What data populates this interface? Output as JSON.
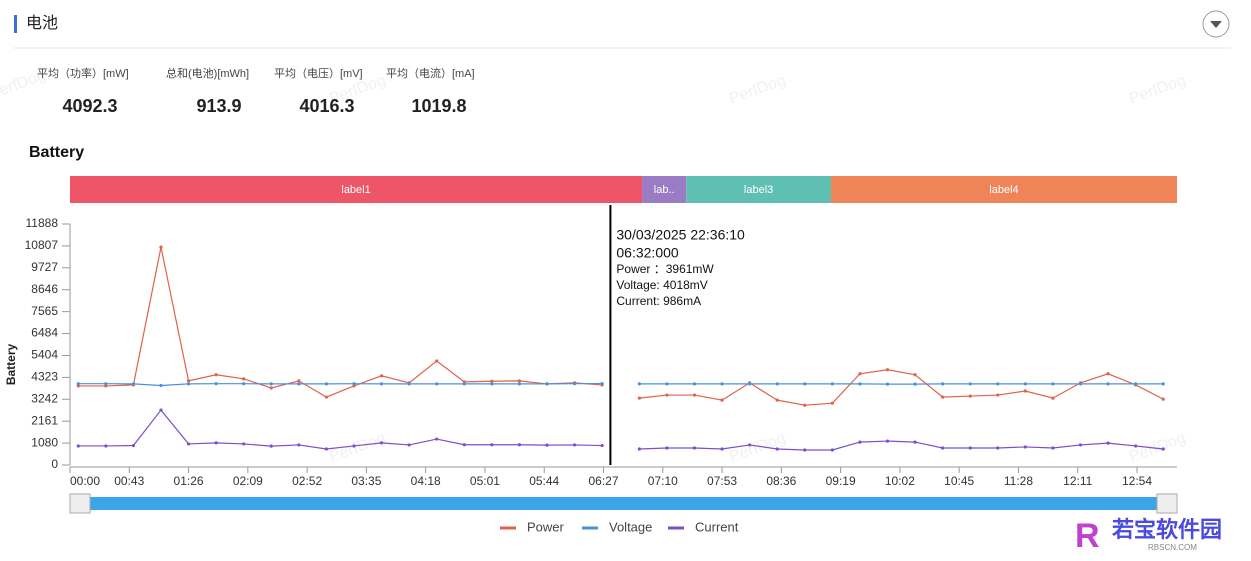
{
  "header": {
    "title": "电池"
  },
  "stats": [
    {
      "label": "平均（功率）[mW]",
      "value": "4092.3"
    },
    {
      "label": "总和(电池)[mWh]",
      "value": "913.9"
    },
    {
      "label": "平均（电压）[mV]",
      "value": "4016.3"
    },
    {
      "label": "平均（电流）[mA]",
      "value": "1019.8"
    }
  ],
  "watermark": "PerfDog",
  "logo": {
    "text": "若宝软件园",
    "sub": "RBSCN.COM"
  },
  "chart_data": {
    "type": "line",
    "title": "Battery",
    "y_label": "Battery",
    "x": [
      6,
      26,
      46,
      66,
      86,
      106,
      126,
      146,
      166,
      186,
      206,
      226,
      246,
      266,
      286,
      306,
      326,
      346,
      366,
      386,
      400,
      413,
      433,
      453,
      473,
      493,
      513,
      533,
      553,
      573,
      593,
      613,
      633,
      653,
      673,
      693,
      713,
      733,
      753,
      773,
      793
    ],
    "xlim": [
      0,
      803
    ],
    "xticks": [
      {
        "value": 0,
        "label": "00:00"
      },
      {
        "value": 43,
        "label": "00:43"
      },
      {
        "value": 86,
        "label": "01:26"
      },
      {
        "value": 129,
        "label": "02:09"
      },
      {
        "value": 172,
        "label": "02:52"
      },
      {
        "value": 215,
        "label": "03:35"
      },
      {
        "value": 258,
        "label": "04:18"
      },
      {
        "value": 301,
        "label": "05:01"
      },
      {
        "value": 344,
        "label": "05:44"
      },
      {
        "value": 387,
        "label": "06:27"
      },
      {
        "value": 430,
        "label": "07:10"
      },
      {
        "value": 473,
        "label": "07:53"
      },
      {
        "value": 516,
        "label": "08:36"
      },
      {
        "value": 559,
        "label": "09:19"
      },
      {
        "value": 602,
        "label": "10:02"
      },
      {
        "value": 645,
        "label": "10:45"
      },
      {
        "value": 688,
        "label": "11:28"
      },
      {
        "value": 731,
        "label": "12:11"
      },
      {
        "value": 774,
        "label": "12:54"
      }
    ],
    "ylim": [
      0,
      11888
    ],
    "yticks": [
      0,
      1080,
      2161,
      3242,
      4323,
      5404,
      6484,
      7565,
      8646,
      9727,
      10807,
      11888
    ],
    "series": [
      {
        "name": "Power",
        "color": "#e0624a",
        "values": [
          3900,
          3900,
          3950,
          10750,
          4150,
          4450,
          4250,
          3800,
          4150,
          3350,
          3900,
          4400,
          4050,
          5130,
          4100,
          4130,
          4150,
          4000,
          4050,
          3950,
          null,
          3300,
          3450,
          3450,
          3200,
          4050,
          3200,
          2950,
          3050,
          4500,
          4700,
          4450,
          3350,
          3400,
          3450,
          3650,
          3300,
          4050,
          4500,
          3950,
          3250
        ]
      },
      {
        "name": "Voltage",
        "color": "#4a90e2",
        "values": [
          4010,
          4010,
          4000,
          3920,
          4000,
          4010,
          4010,
          4000,
          4000,
          4000,
          4010,
          4000,
          4000,
          4000,
          4000,
          4000,
          4000,
          4000,
          4010,
          4018,
          null,
          4000,
          4000,
          4000,
          4000,
          4000,
          4000,
          4000,
          4000,
          4000,
          3990,
          3990,
          4000,
          4000,
          4000,
          4000,
          4000,
          4000,
          4000,
          4000,
          4000
        ]
      },
      {
        "name": "Current",
        "color": "#7b4fc9",
        "values": [
          940,
          940,
          960,
          2710,
          1040,
          1090,
          1040,
          930,
          990,
          790,
          940,
          1090,
          990,
          1280,
          1000,
          1000,
          1000,
          980,
          990,
          960,
          null,
          790,
          840,
          840,
          790,
          990,
          790,
          740,
          740,
          1130,
          1180,
          1130,
          840,
          840,
          840,
          890,
          840,
          990,
          1080,
          940,
          790
        ]
      }
    ],
    "bands": [
      {
        "label": "label1",
        "start": 0,
        "end": 415,
        "color": "#ee5566"
      },
      {
        "label": "lab..",
        "start": 415,
        "end": 447,
        "color": "#9a7cc4"
      },
      {
        "label": "label3",
        "start": 447,
        "end": 552,
        "color": "#5fbfb2"
      },
      {
        "label": "label4",
        "start": 552,
        "end": 803,
        "color": "#ef8459"
      }
    ],
    "tooltip": {
      "x": 392,
      "lines": [
        "30/03/2025 22:36:10",
        "06:32:000",
        "Power ：3961mW",
        "Voltage: 4018mV",
        "Current: 986mA"
      ]
    },
    "legend": "bottom"
  }
}
